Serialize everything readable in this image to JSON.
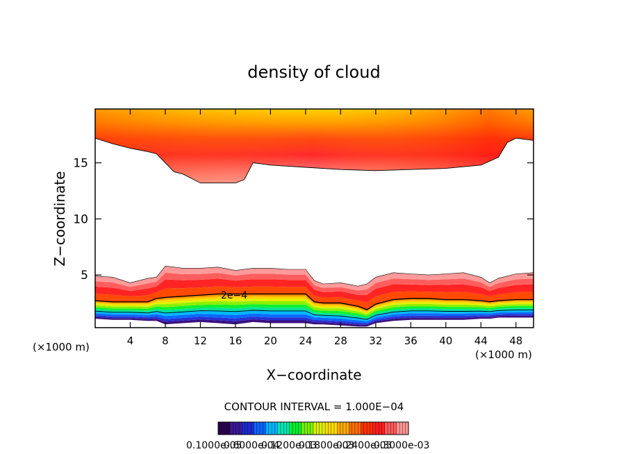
{
  "chart_data": {
    "type": "contour",
    "title": "density of cloud",
    "xlabel": "X−coordinate",
    "ylabel": "Z−coordinate",
    "x_unit_left": "(×1000 m)",
    "x_unit_right": "(×1000 m)",
    "xlim": [
      0,
      50
    ],
    "ylim": [
      0.3,
      19.8
    ],
    "x_ticks": [
      4,
      8,
      12,
      16,
      20,
      24,
      28,
      32,
      36,
      40,
      44,
      48
    ],
    "y_ticks": [
      5,
      10,
      15
    ],
    "contour_label": "2e−4",
    "contour_interval_text": "CONTOUR INTERVAL = 1.000E−04",
    "colorbar_labels_text": "0.1000e-05",
    "colorbar_labels_text_2": "0.6000e-04",
    "colorbar_labels_text_3": "0.1200e-03",
    "colorbar_labels_text_4": "0.1800e-03",
    "colorbar_labels_text_5": "0.2400e-03",
    "colorbar_labels_text_6": "0.3000e-03",
    "colormap": [
      "#2a0050",
      "#3c1896",
      "#1e28d2",
      "#0a64ff",
      "#00b4ff",
      "#00e6b4",
      "#00f032",
      "#78f000",
      "#dcf000",
      "#ffdc00",
      "#ffaa00",
      "#ff6e00",
      "#ff3200",
      "#ff1e1e",
      "#ff5a5a",
      "#ff9696"
    ],
    "upper_cloud": {
      "top": 19.8,
      "bottom_edge_x": [
        0,
        2,
        4,
        6,
        7,
        8,
        9,
        10,
        12,
        14,
        16,
        17,
        18,
        20,
        24,
        28,
        32,
        36,
        40,
        44,
        46,
        47,
        48,
        50
      ],
      "bottom_edge_z": [
        17.2,
        16.7,
        16.3,
        16.0,
        15.8,
        15.0,
        14.2,
        14.0,
        13.2,
        13.2,
        13.2,
        13.5,
        15.0,
        14.8,
        14.6,
        14.4,
        14.3,
        14.4,
        14.5,
        14.8,
        15.5,
        16.8,
        17.2,
        17.0
      ]
    },
    "lower_cloud": {
      "x": [
        0,
        2,
        4,
        6,
        7,
        8,
        10,
        12,
        14,
        16,
        18,
        20,
        22,
        24,
        25,
        26,
        28,
        30,
        31,
        32,
        34,
        36,
        38,
        40,
        42,
        44,
        45,
        46,
        48,
        50
      ],
      "top_z": [
        4.9,
        4.8,
        4.3,
        4.7,
        4.8,
        5.8,
        5.6,
        5.6,
        5.7,
        5.4,
        5.6,
        5.6,
        5.5,
        5.5,
        4.5,
        4.2,
        4.3,
        4.0,
        4.2,
        4.8,
        5.2,
        5.1,
        5.0,
        5.1,
        5.2,
        4.8,
        4.3,
        4.7,
        5.1,
        5.2
      ],
      "contour_2e4_z": [
        2.7,
        2.6,
        2.6,
        2.6,
        2.9,
        3.0,
        3.1,
        3.2,
        3.3,
        3.3,
        3.3,
        3.3,
        3.3,
        3.3,
        2.6,
        2.5,
        2.5,
        2.2,
        1.9,
        2.4,
        2.8,
        2.9,
        2.9,
        2.8,
        2.8,
        2.7,
        2.6,
        2.7,
        2.8,
        2.8
      ],
      "bottom_z": [
        1.1,
        1.0,
        1.0,
        0.9,
        0.9,
        0.6,
        0.7,
        0.8,
        0.7,
        0.6,
        0.8,
        0.7,
        0.7,
        0.7,
        0.6,
        0.6,
        0.5,
        0.4,
        0.4,
        0.7,
        0.9,
        1.0,
        1.0,
        1.0,
        1.0,
        1.1,
        1.1,
        1.2,
        1.2,
        1.2
      ]
    }
  }
}
